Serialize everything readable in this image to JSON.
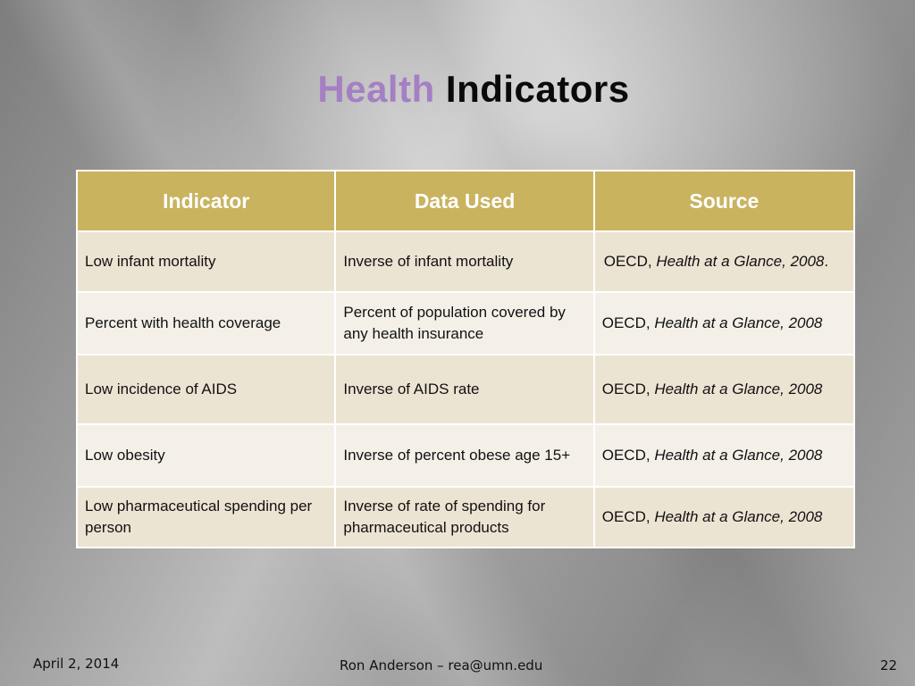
{
  "slide": {
    "title_part1": "Health",
    "title_part2": "Indicators",
    "title_color_part1": "#a57fc4",
    "header_color": "#c9b35f"
  },
  "table": {
    "headers": [
      "Indicator",
      "Data Used",
      "Source"
    ],
    "rows": [
      {
        "indicator": "Low infant mortality",
        "data_used": "Inverse of infant mortality",
        "source_prefix": "OECD, ",
        "source_title": "Health at a Glance, 2008",
        "source_suffix": "."
      },
      {
        "indicator": "Percent with health coverage",
        "data_used": "Percent of population covered by any health insurance",
        "source_prefix": "OECD, ",
        "source_title": "Health at a Glance, 2008",
        "source_suffix": ""
      },
      {
        "indicator": "Low incidence of AIDS",
        "data_used": "Inverse of AIDS rate",
        "source_prefix": "OECD, ",
        "source_title": "Health at a Glance, 2008",
        "source_suffix": ""
      },
      {
        "indicator": "Low obesity",
        "data_used": "Inverse of percent obese age 15+",
        "source_prefix": "OECD, ",
        "source_title": "Health at a Glance, 2008",
        "source_suffix": ""
      },
      {
        "indicator": "Low pharmaceutical spending per person",
        "data_used": "Inverse of rate of spending for pharmaceutical products",
        "source_prefix": "OECD, ",
        "source_title": "Health at a Glance, 2008",
        "source_suffix": ""
      }
    ]
  },
  "footer": {
    "date": "April 2, 2014",
    "author": "Ron Anderson – rea@umn.edu",
    "page_number": "22"
  }
}
